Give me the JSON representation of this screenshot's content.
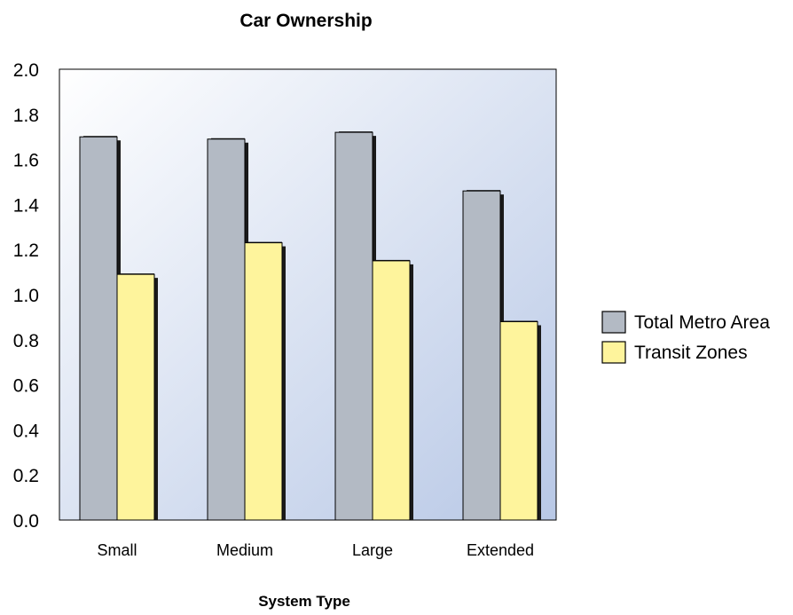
{
  "chart_data": {
    "type": "bar",
    "title": "Car Ownership",
    "xlabel": "System Type",
    "ylabel": "",
    "categories": [
      "Small",
      "Medium",
      "Large",
      "Extended"
    ],
    "series": [
      {
        "name": "Total Metro Area",
        "values": [
          1.7,
          1.69,
          1.72,
          1.46
        ],
        "color": "#b3bac4"
      },
      {
        "name": "Transit Zones",
        "values": [
          1.09,
          1.23,
          1.15,
          0.88
        ],
        "color": "#fef49c"
      }
    ],
    "ylim": [
      0,
      2.0
    ],
    "yticks": [
      "0.0",
      "0.2",
      "0.4",
      "0.6",
      "0.8",
      "1.0",
      "1.2",
      "1.4",
      "1.6",
      "1.8",
      "2.0"
    ],
    "grid": false,
    "legend_position": "right",
    "colors": {
      "plot_bg_light": "#ffffff",
      "plot_bg_dark": "#b8c8e6",
      "bar_edge": "#000000"
    }
  }
}
